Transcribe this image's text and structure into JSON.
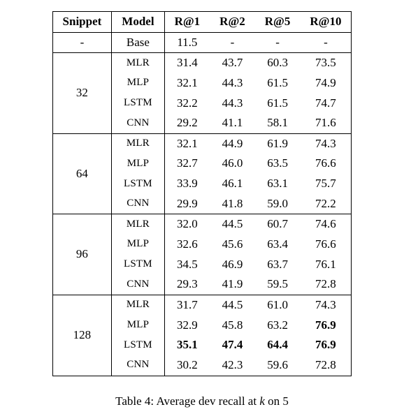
{
  "table": {
    "columns": [
      "Snippet",
      "Model",
      "R@1",
      "R@2",
      "R@5",
      "R@10"
    ],
    "column_align": [
      "center",
      "center",
      "center",
      "center",
      "center",
      "center"
    ],
    "header_bold": true,
    "border_color": "#000000",
    "background_color": "#ffffff",
    "font_family": "Times New Roman",
    "header_fontsize": 17,
    "body_fontsize": 17,
    "model_fontsize": 15,
    "groups": [
      {
        "snippet": "-",
        "rows": [
          {
            "model": "Base",
            "sc": false,
            "r1": "11.5",
            "r2": "-",
            "r5": "-",
            "r10": "-"
          }
        ]
      },
      {
        "snippet": "32",
        "rows": [
          {
            "model": "MLR",
            "sc": true,
            "r1": "31.4",
            "r2": "43.7",
            "r5": "60.3",
            "r10": "73.5"
          },
          {
            "model": "MLP",
            "sc": true,
            "r1": "32.1",
            "r2": "44.3",
            "r5": "61.5",
            "r10": "74.9"
          },
          {
            "model": "LSTM",
            "sc": true,
            "r1": "32.2",
            "r2": "44.3",
            "r5": "61.5",
            "r10": "74.7"
          },
          {
            "model": "CNN",
            "sc": true,
            "r1": "29.2",
            "r2": "41.1",
            "r5": "58.1",
            "r10": "71.6"
          }
        ]
      },
      {
        "snippet": "64",
        "rows": [
          {
            "model": "MLR",
            "sc": true,
            "r1": "32.1",
            "r2": "44.9",
            "r5": "61.9",
            "r10": "74.3"
          },
          {
            "model": "MLP",
            "sc": true,
            "r1": "32.7",
            "r2": "46.0",
            "r5": "63.5",
            "r10": "76.6"
          },
          {
            "model": "LSTM",
            "sc": true,
            "r1": "33.9",
            "r2": "46.1",
            "r5": "63.1",
            "r10": "75.7"
          },
          {
            "model": "CNN",
            "sc": true,
            "r1": "29.9",
            "r2": "41.8",
            "r5": "59.0",
            "r10": "72.2"
          }
        ]
      },
      {
        "snippet": "96",
        "rows": [
          {
            "model": "MLR",
            "sc": true,
            "r1": "32.0",
            "r2": "44.5",
            "r5": "60.7",
            "r10": "74.6"
          },
          {
            "model": "MLP",
            "sc": true,
            "r1": "32.6",
            "r2": "45.6",
            "r5": "63.4",
            "r10": "76.6"
          },
          {
            "model": "LSTM",
            "sc": true,
            "r1": "34.5",
            "r2": "46.9",
            "r5": "63.7",
            "r10": "76.1"
          },
          {
            "model": "CNN",
            "sc": true,
            "r1": "29.3",
            "r2": "41.9",
            "r5": "59.5",
            "r10": "72.8"
          }
        ]
      },
      {
        "snippet": "128",
        "rows": [
          {
            "model": "MLR",
            "sc": true,
            "r1": "31.7",
            "r2": "44.5",
            "r5": "61.0",
            "r10": "74.3"
          },
          {
            "model": "MLP",
            "sc": true,
            "r1": "32.9",
            "r2": "45.8",
            "r5": "63.2",
            "r10": "76.9",
            "bold": [
              "r10"
            ]
          },
          {
            "model": "LSTM",
            "sc": true,
            "r1": "35.1",
            "r2": "47.4",
            "r5": "64.4",
            "r10": "76.9",
            "bold": [
              "r1",
              "r2",
              "r5",
              "r10"
            ]
          },
          {
            "model": "CNN",
            "sc": true,
            "r1": "30.2",
            "r2": "42.3",
            "r5": "59.6",
            "r10": "72.8"
          }
        ]
      }
    ]
  },
  "caption": {
    "label": "Table 4:",
    "text_before": "Average dev recall at ",
    "var": "k",
    "text_after": " on 5"
  }
}
